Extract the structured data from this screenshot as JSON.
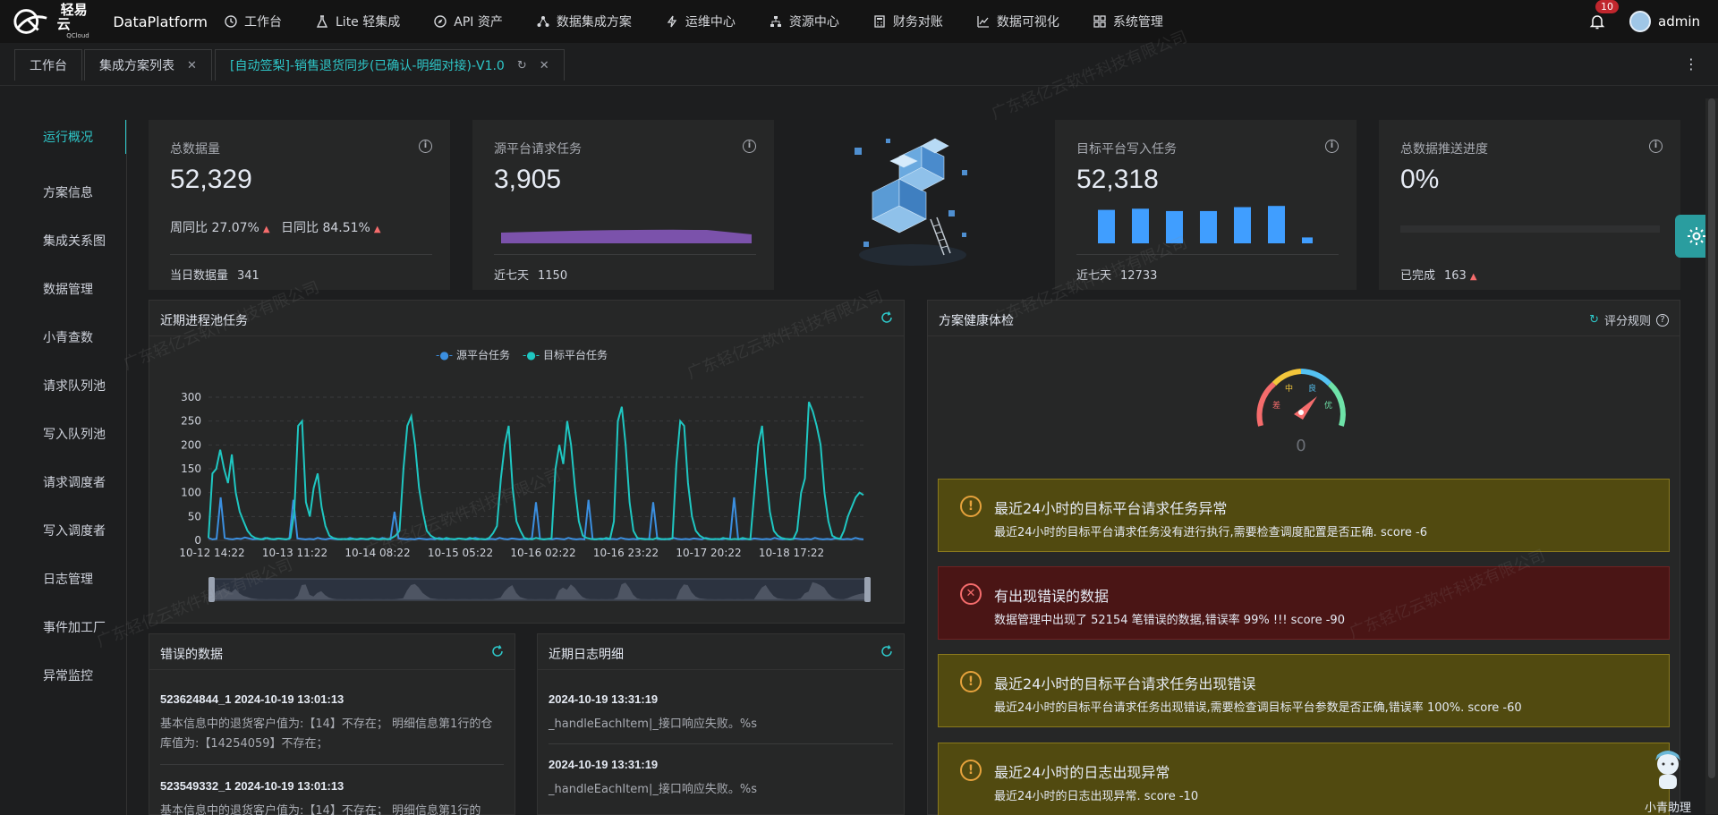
{
  "header": {
    "logo_cn": "轻易云",
    "logo_en": "QCloud",
    "app_name": "DataPlatform",
    "nav": [
      {
        "label": "工作台",
        "icon": "clock-icon"
      },
      {
        "label": "Lite 轻集成",
        "icon": "flask-icon"
      },
      {
        "label": "API 资产",
        "icon": "compass-icon"
      },
      {
        "label": "数据集成方案",
        "icon": "nodes-icon"
      },
      {
        "label": "运维中心",
        "icon": "bolt-icon"
      },
      {
        "label": "资源中心",
        "icon": "sitemap-icon"
      },
      {
        "label": "财务对账",
        "icon": "calculator-icon"
      },
      {
        "label": "数据可视化",
        "icon": "chart-icon"
      },
      {
        "label": "系统管理",
        "icon": "grid-icon"
      }
    ],
    "notification_count": "10",
    "username": "admin"
  },
  "tabs": [
    {
      "label": "工作台"
    },
    {
      "label": "集成方案列表"
    },
    {
      "label": "[自动签梨]-销售退货同步(已确认-明细对接)-V1.0"
    }
  ],
  "sidebar": {
    "items": [
      "运行概况",
      "方案信息",
      "集成关系图",
      "数据管理",
      "小青查数",
      "请求队列池",
      "写入队列池",
      "请求调度者",
      "写入调度者",
      "日志管理",
      "事件加工厂",
      "异常监控"
    ]
  },
  "stats": {
    "total": {
      "title": "总数据量",
      "value": "52,329",
      "week_label": "周同比",
      "week_value": "27.07%",
      "day_label": "日同比",
      "day_value": "84.51%",
      "foot_label": "当日数据量",
      "foot_value": "341"
    },
    "source": {
      "title": "源平台请求任务",
      "value": "3,905",
      "foot_label": "近七天",
      "foot_value": "1150"
    },
    "target": {
      "title": "目标平台写入任务",
      "value": "52,318",
      "foot_label": "近七天",
      "foot_value": "12733",
      "bars": [
        0.85,
        0.88,
        0.82,
        0.82,
        0.92,
        0.95,
        0.15
      ]
    },
    "progress": {
      "title": "总数据推送进度",
      "value": "0%",
      "foot_label": "已完成",
      "foot_value": "163",
      "percent": 0
    }
  },
  "recent_tasks": {
    "title": "近期进程池任务",
    "legend": [
      "源平台任务",
      "目标平台任务"
    ]
  },
  "chart_data": {
    "type": "line",
    "title": "近期进程池任务",
    "x_ticks": [
      "10-12 14:22",
      "10-13 11:22",
      "10-14 08:22",
      "10-15 05:22",
      "10-16 02:22",
      "10-16 23:22",
      "10-17 20:22",
      "10-18 17:22"
    ],
    "ylim": [
      0,
      300
    ],
    "y_ticks": [
      0,
      50,
      100,
      150,
      200,
      250,
      300
    ],
    "series": [
      {
        "name": "源平台任务",
        "color": "#3b8fe0",
        "values": [
          5,
          2,
          3,
          90,
          5,
          3,
          2,
          4,
          3,
          6,
          4,
          2,
          3,
          2,
          5,
          3,
          2,
          4,
          3,
          2,
          3,
          85,
          4,
          3,
          2,
          3,
          2,
          5,
          3,
          2,
          4,
          3,
          2,
          3,
          2,
          5,
          3,
          2,
          3,
          2,
          4,
          3,
          2,
          5,
          3,
          2,
          60,
          4,
          3,
          2,
          3,
          2,
          4,
          3,
          2,
          3,
          2,
          5,
          3,
          2,
          3,
          2,
          4,
          3,
          2,
          3,
          5,
          3,
          2,
          2,
          3,
          2,
          5,
          3,
          2,
          4,
          3,
          2,
          3,
          2,
          5,
          80,
          3,
          2,
          3,
          2,
          4,
          3,
          2,
          5,
          3,
          2,
          3,
          2,
          85,
          3,
          2,
          4,
          3,
          2,
          3,
          2,
          5,
          3,
          2,
          3,
          2,
          4,
          3,
          2,
          80,
          3,
          2,
          3,
          2,
          5,
          3,
          2,
          3,
          2,
          4,
          3,
          2,
          5,
          3,
          2,
          3,
          2,
          4,
          3,
          90,
          3,
          2,
          3,
          2,
          4,
          3,
          2,
          3,
          2,
          5,
          3,
          2,
          3,
          2,
          4,
          3,
          2,
          3,
          2,
          5,
          3,
          2,
          3,
          2,
          4,
          3,
          2,
          3,
          2,
          5,
          3,
          2
        ]
      },
      {
        "name": "目标平台任务",
        "color": "#1fc7c2",
        "values": [
          5,
          140,
          150,
          190,
          150,
          120,
          180,
          100,
          60,
          40,
          20,
          10,
          5,
          3,
          2,
          5,
          3,
          2,
          4,
          3,
          2,
          5,
          60,
          240,
          250,
          80,
          50,
          110,
          140,
          70,
          30,
          10,
          5,
          3,
          2,
          3,
          2,
          3,
          2,
          4,
          3,
          2,
          5,
          3,
          2,
          3,
          2,
          5,
          10,
          20,
          150,
          240,
          260,
          200,
          110,
          60,
          20,
          10,
          5,
          3,
          2,
          5,
          3,
          2,
          4,
          3,
          2,
          5,
          3,
          2,
          3,
          2,
          5,
          15,
          30,
          130,
          200,
          240,
          110,
          40,
          20,
          5,
          3,
          2,
          5,
          3,
          2,
          3,
          4,
          150,
          200,
          160,
          250,
          200,
          110,
          40,
          10,
          5,
          3,
          2,
          3,
          2,
          5,
          3,
          40,
          250,
          280,
          200,
          80,
          20,
          5,
          3,
          2,
          3,
          2,
          5,
          3,
          2,
          3,
          4,
          160,
          250,
          240,
          120,
          50,
          20,
          10,
          5,
          3,
          2,
          3,
          2,
          5,
          3,
          2,
          3,
          2,
          5,
          3,
          2,
          100,
          200,
          240,
          140,
          60,
          20,
          10,
          5,
          3,
          2,
          3,
          20,
          100,
          130,
          290,
          270,
          240,
          200,
          100,
          40,
          10,
          5,
          3,
          20,
          50,
          70,
          90,
          100,
          95
        ]
      }
    ]
  },
  "health": {
    "title": "方案健康体检",
    "rules_label": "评分规则",
    "gauge": {
      "labels": [
        "差",
        "中",
        "良",
        "优"
      ],
      "score": "0"
    },
    "alerts": [
      {
        "type": "warn",
        "title": "最近24小时的目标平台请求任务异常",
        "desc": "最近24小时的目标平台请求任务没有进行执行,需要检查调度配置是否正确. score -6"
      },
      {
        "type": "err",
        "title": "有出现错误的数据",
        "desc": "数据管理中出现了 52154 笔错误的数据,错误率 99% !!! score -90"
      },
      {
        "type": "warn",
        "title": "最近24小时的目标平台请求任务出现错误",
        "desc": "最近24小时的目标平台请求任务出现错误,需要检查调目标平台参数是否正确,错误率 100%. score -60"
      },
      {
        "type": "warn",
        "title": "最近24小时的日志出现异常",
        "desc": "最近24小时的日志出现异常. score -10"
      }
    ]
  },
  "error_data": {
    "title": "错误的数据",
    "items": [
      {
        "head": "523624844_1 2024-10-19 13:01:13",
        "text": "基本信息中的退货客户值为:【14】不存在； 明细信息第1行的仓库值为:【14254059】不存在；"
      },
      {
        "head": "523549332_1 2024-10-19 13:01:13",
        "text": "基本信息中的退货客户值为:【14】不存在； 明细信息第1行的"
      }
    ]
  },
  "logs": {
    "title": "近期日志明细",
    "items": [
      {
        "head": "2024-10-19 13:31:19",
        "text": "_handleEachItem|_接口响应失败。%s"
      },
      {
        "head": "2024-10-19 13:31:19",
        "text": "_handleEachItem|_接口响应失败。%s"
      }
    ]
  },
  "watermark_text": "广东轻亿云软件科技有限公司",
  "assistant_label": "小青助理",
  "colors": {
    "accent": "#2ec7c9",
    "warn_bg": "#514a10",
    "err_bg": "#4a1515",
    "bar": "#409eff",
    "purple": "#7b52ab"
  }
}
